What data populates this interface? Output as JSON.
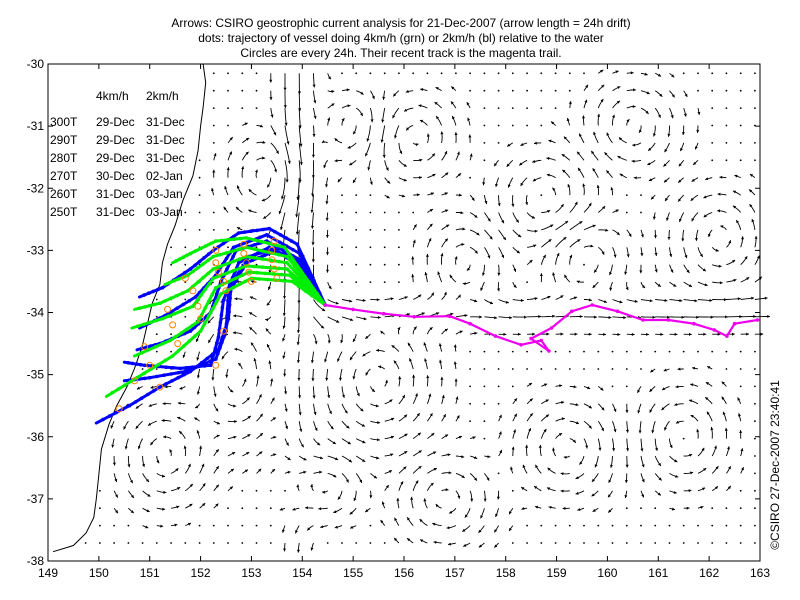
{
  "chart_data": {
    "type": "line",
    "title": [
      "Arrows: CSIRO geostrophic current analysis for 21-Dec-2007 (arrow length = 24h drift)",
      "dots: trajectory of vessel doing 4km/h (grn) or 2km/h (bl) relative to the water",
      "Circles are every 24h. Their recent track is the magenta trail."
    ],
    "credit": "©CSIRO 27-Dec-2007 23:40:41",
    "xlim": [
      149,
      163
    ],
    "ylim": [
      -38,
      -30
    ],
    "x_ticks": [
      149,
      150,
      151,
      152,
      153,
      154,
      155,
      156,
      157,
      158,
      159,
      160,
      161,
      162,
      163
    ],
    "y_ticks": [
      -30,
      -31,
      -32,
      -33,
      -34,
      -35,
      -36,
      -37,
      -38
    ],
    "arrival_table": {
      "headers": [
        "",
        "4km/h",
        "2km/h"
      ],
      "rows": [
        [
          "300T",
          "29-Dec",
          "31-Dec"
        ],
        [
          "290T",
          "29-Dec",
          "31-Dec"
        ],
        [
          "280T",
          "29-Dec",
          "31-Dec"
        ],
        [
          "270T",
          "30-Dec",
          "02-Jan"
        ],
        [
          "260T",
          "31-Dec",
          "03-Jan"
        ],
        [
          "250T",
          "31-Dec",
          "03-Jan"
        ]
      ]
    },
    "colors": {
      "fast": "#00ee00",
      "slow": "#0000ff",
      "recent": "#ee00ee",
      "arrows": "#000000",
      "circles": "#ff8000",
      "coast": "#000000"
    },
    "recent_track": [
      [
        154.45,
        -33.88
      ],
      [
        155.0,
        -33.95
      ],
      [
        155.6,
        -34.02
      ],
      [
        156.2,
        -34.07
      ],
      [
        156.9,
        -34.06
      ],
      [
        157.3,
        -34.18
      ],
      [
        157.8,
        -34.38
      ],
      [
        158.3,
        -34.52
      ],
      [
        158.7,
        -34.45
      ],
      [
        158.85,
        -34.62
      ],
      [
        158.5,
        -34.42
      ],
      [
        158.9,
        -34.25
      ],
      [
        159.3,
        -33.98
      ],
      [
        159.7,
        -33.88
      ],
      [
        160.2,
        -33.98
      ],
      [
        160.7,
        -34.12
      ],
      [
        161.2,
        -34.12
      ],
      [
        161.7,
        -34.18
      ],
      [
        162.1,
        -34.28
      ],
      [
        162.35,
        -34.38
      ],
      [
        162.5,
        -34.18
      ],
      [
        162.95,
        -34.12
      ]
    ],
    "trajectory_start": [
      154.45,
      -33.88
    ],
    "slow_tracks": [
      {
        "name": "300T",
        "points": [
          [
            154.45,
            -33.88
          ],
          [
            154.1,
            -33.35
          ],
          [
            153.55,
            -32.95
          ],
          [
            152.95,
            -33.1
          ],
          [
            152.6,
            -33.55
          ],
          [
            152.55,
            -34.1
          ],
          [
            152.35,
            -34.6
          ],
          [
            151.8,
            -34.95
          ],
          [
            151.2,
            -35.2
          ],
          [
            150.6,
            -35.5
          ],
          [
            149.95,
            -35.78
          ]
        ]
      },
      {
        "name": "290T",
        "points": [
          [
            154.45,
            -33.88
          ],
          [
            154.0,
            -33.3
          ],
          [
            153.5,
            -33.0
          ],
          [
            152.9,
            -33.2
          ],
          [
            152.55,
            -33.7
          ],
          [
            152.5,
            -34.3
          ],
          [
            152.3,
            -34.75
          ],
          [
            151.7,
            -34.95
          ],
          [
            151.0,
            -35.05
          ],
          [
            150.5,
            -35.1
          ]
        ]
      },
      {
        "name": "280T",
        "points": [
          [
            154.45,
            -33.88
          ],
          [
            153.95,
            -33.2
          ],
          [
            153.35,
            -32.95
          ],
          [
            152.75,
            -33.2
          ],
          [
            152.45,
            -33.8
          ],
          [
            152.35,
            -34.4
          ],
          [
            152.2,
            -34.85
          ],
          [
            151.6,
            -34.9
          ],
          [
            150.9,
            -34.85
          ],
          [
            150.5,
            -34.8
          ]
        ]
      },
      {
        "name": "270T",
        "points": [
          [
            154.45,
            -33.88
          ],
          [
            153.95,
            -33.15
          ],
          [
            153.3,
            -32.85
          ],
          [
            152.7,
            -33.0
          ],
          [
            152.4,
            -33.5
          ],
          [
            152.2,
            -34.0
          ],
          [
            151.8,
            -34.3
          ],
          [
            151.2,
            -34.5
          ],
          [
            150.75,
            -34.6
          ]
        ]
      },
      {
        "name": "260T",
        "points": [
          [
            154.45,
            -33.88
          ],
          [
            153.95,
            -33.05
          ],
          [
            153.3,
            -32.75
          ],
          [
            152.65,
            -32.95
          ],
          [
            152.3,
            -33.4
          ],
          [
            151.9,
            -33.75
          ],
          [
            151.3,
            -34.05
          ],
          [
            150.8,
            -34.25
          ]
        ]
      },
      {
        "name": "250T",
        "points": [
          [
            154.45,
            -33.88
          ],
          [
            153.9,
            -32.9
          ],
          [
            153.35,
            -32.65
          ],
          [
            152.75,
            -32.72
          ],
          [
            152.25,
            -33.0
          ],
          [
            151.8,
            -33.3
          ],
          [
            151.25,
            -33.6
          ],
          [
            150.8,
            -33.75
          ]
        ]
      }
    ],
    "fast_tracks": [
      {
        "name": "300T",
        "points": [
          [
            154.45,
            -33.88
          ],
          [
            153.8,
            -33.5
          ],
          [
            153.0,
            -33.45
          ],
          [
            152.4,
            -33.7
          ],
          [
            152.0,
            -34.3
          ],
          [
            151.45,
            -34.7
          ],
          [
            150.75,
            -35.05
          ],
          [
            150.15,
            -35.35
          ]
        ]
      },
      {
        "name": "290T",
        "points": [
          [
            154.45,
            -33.88
          ],
          [
            153.75,
            -33.4
          ],
          [
            152.95,
            -33.35
          ],
          [
            152.3,
            -33.6
          ],
          [
            151.95,
            -34.15
          ],
          [
            151.4,
            -34.45
          ],
          [
            150.7,
            -34.7
          ]
        ]
      },
      {
        "name": "280T",
        "points": [
          [
            154.45,
            -33.88
          ],
          [
            153.7,
            -33.3
          ],
          [
            152.9,
            -33.25
          ],
          [
            152.25,
            -33.45
          ],
          [
            151.85,
            -33.9
          ],
          [
            151.25,
            -34.1
          ],
          [
            150.65,
            -34.25
          ]
        ]
      },
      {
        "name": "270T",
        "points": [
          [
            154.45,
            -33.88
          ],
          [
            153.7,
            -33.2
          ],
          [
            152.9,
            -33.1
          ],
          [
            152.25,
            -33.3
          ],
          [
            151.75,
            -33.65
          ],
          [
            151.2,
            -33.85
          ],
          [
            150.7,
            -33.95
          ]
        ]
      },
      {
        "name": "260T",
        "points": [
          [
            154.45,
            -33.88
          ],
          [
            153.7,
            -33.1
          ],
          [
            152.9,
            -32.95
          ],
          [
            152.25,
            -33.1
          ],
          [
            151.75,
            -33.4
          ],
          [
            151.3,
            -33.55
          ]
        ]
      },
      {
        "name": "250T",
        "points": [
          [
            154.45,
            -33.88
          ],
          [
            153.65,
            -32.95
          ],
          [
            152.9,
            -32.8
          ],
          [
            152.3,
            -32.85
          ],
          [
            151.8,
            -33.05
          ],
          [
            151.45,
            -33.2
          ]
        ]
      }
    ],
    "daily_circles": [
      [
        153.5,
        -33.45
      ],
      [
        153.45,
        -33.3
      ],
      [
        153.4,
        -33.15
      ],
      [
        153.4,
        -33.0
      ],
      [
        153.45,
        -32.85
      ],
      [
        153.0,
        -33.5
      ],
      [
        152.95,
        -33.35
      ],
      [
        152.9,
        -33.2
      ],
      [
        152.85,
        -33.05
      ],
      [
        152.85,
        -32.9
      ],
      [
        152.5,
        -33.65
      ],
      [
        152.45,
        -33.5
      ],
      [
        152.35,
        -33.35
      ],
      [
        152.3,
        -33.2
      ],
      [
        152.3,
        -33.0
      ],
      [
        152.0,
        -34.1
      ],
      [
        151.95,
        -33.9
      ],
      [
        151.85,
        -33.65
      ],
      [
        151.7,
        -33.45
      ],
      [
        151.55,
        -34.5
      ],
      [
        151.45,
        -34.2
      ],
      [
        151.35,
        -33.95
      ],
      [
        151.0,
        -34.85
      ],
      [
        150.9,
        -34.55
      ],
      [
        150.7,
        -35.1
      ],
      [
        152.45,
        -34.3
      ],
      [
        152.3,
        -34.85
      ],
      [
        151.2,
        -35.2
      ],
      [
        150.4,
        -35.55
      ]
    ],
    "eddies": [
      {
        "center": [
          151.3,
          -36.3
        ],
        "radius": [
          0.8,
          0.75
        ],
        "direction": "ccw"
      },
      {
        "center": [
          152.7,
          -35.0
        ],
        "radius": [
          0.6,
          1.0
        ],
        "direction": "ccw"
      },
      {
        "center": [
          153.3,
          -31.8
        ],
        "radius": [
          0.7,
          0.55
        ],
        "direction": "cw"
      },
      {
        "center": [
          155.0,
          -31.0
        ],
        "radius": [
          0.6,
          0.5
        ],
        "direction": "cw"
      },
      {
        "center": [
          155.5,
          -35.1
        ],
        "radius": [
          1.0,
          0.9
        ],
        "direction": "ccw"
      },
      {
        "center": [
          156.2,
          -31.2
        ],
        "radius": [
          0.8,
          0.6
        ],
        "direction": "ccw"
      },
      {
        "center": [
          157.2,
          -33.2
        ],
        "radius": [
          0.7,
          0.6
        ],
        "direction": "cw"
      },
      {
        "center": [
          158.8,
          -32.2
        ],
        "radius": [
          0.9,
          0.7
        ],
        "direction": "ccw"
      },
      {
        "center": [
          159.5,
          -33.1
        ],
        "radius": [
          0.8,
          0.6
        ],
        "direction": "cw"
      },
      {
        "center": [
          160.5,
          -31.0
        ],
        "radius": [
          0.8,
          0.6
        ],
        "direction": "cw"
      },
      {
        "center": [
          162.2,
          -32.8
        ],
        "radius": [
          0.8,
          0.7
        ],
        "direction": "ccw"
      },
      {
        "center": [
          159.2,
          -36.2
        ],
        "radius": [
          0.9,
          0.7
        ],
        "direction": "cw"
      },
      {
        "center": [
          161.5,
          -36.0
        ],
        "radius": [
          0.8,
          0.7
        ],
        "direction": "ccw"
      },
      {
        "center": [
          156.8,
          -37.0
        ],
        "radius": [
          0.9,
          0.6
        ],
        "direction": "cw"
      },
      {
        "center": [
          154.5,
          -36.8
        ],
        "radius": [
          0.7,
          0.5
        ],
        "direction": "cw"
      }
    ],
    "coastline": [
      [
        152.05,
        -30.0
      ],
      [
        152.1,
        -30.3
      ],
      [
        152.05,
        -30.7
      ],
      [
        152.0,
        -31.0
      ],
      [
        151.95,
        -31.4
      ],
      [
        151.85,
        -31.8
      ],
      [
        151.65,
        -32.2
      ],
      [
        151.5,
        -32.6
      ],
      [
        151.35,
        -32.9
      ],
      [
        151.25,
        -33.2
      ],
      [
        151.2,
        -33.55
      ],
      [
        151.05,
        -33.85
      ],
      [
        150.95,
        -34.2
      ],
      [
        150.85,
        -34.55
      ],
      [
        150.7,
        -34.9
      ],
      [
        150.55,
        -35.2
      ],
      [
        150.35,
        -35.5
      ],
      [
        150.2,
        -35.8
      ],
      [
        150.05,
        -36.2
      ],
      [
        150.0,
        -36.6
      ],
      [
        149.95,
        -37.0
      ],
      [
        149.9,
        -37.3
      ],
      [
        149.75,
        -37.55
      ],
      [
        149.5,
        -37.75
      ],
      [
        149.1,
        -37.85
      ]
    ]
  }
}
